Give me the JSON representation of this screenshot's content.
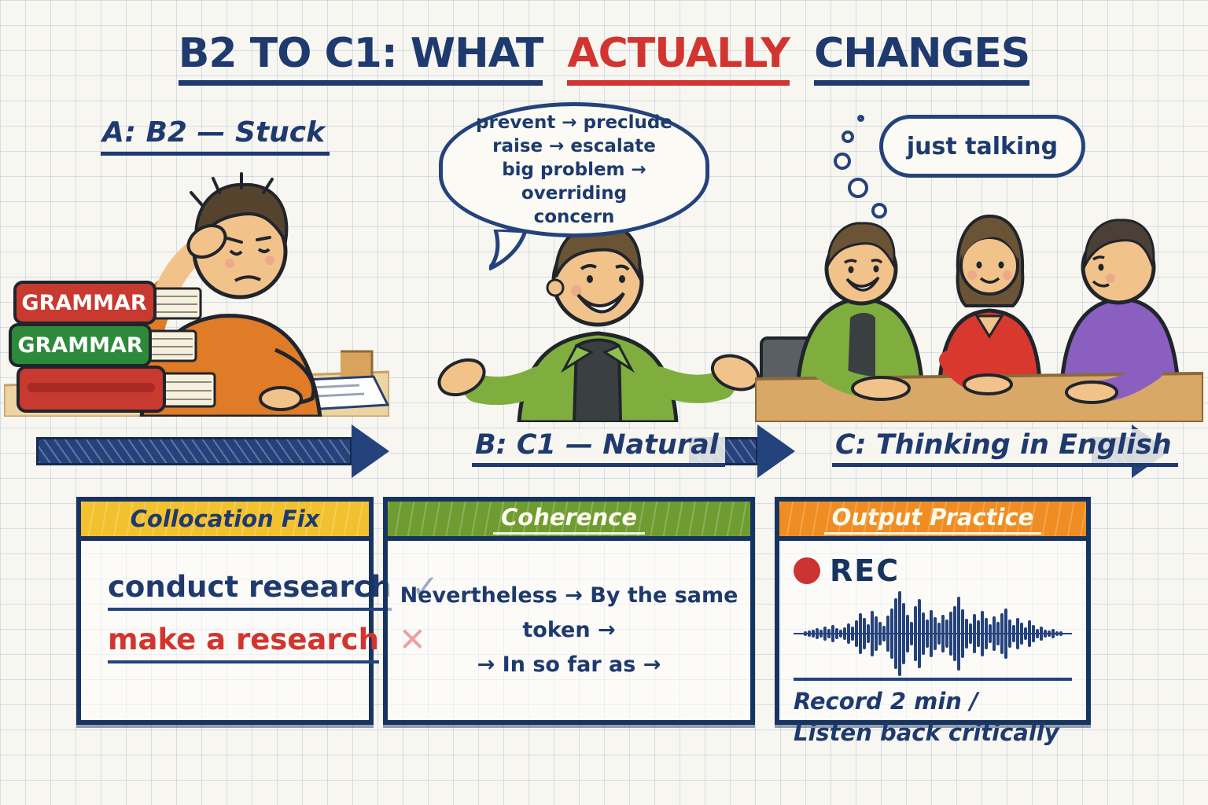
{
  "title": {
    "part1": "B2 TO C1: WHAT",
    "highlight": "ACTUALLY",
    "part2": "CHANGES"
  },
  "scene_a": {
    "label": "A: B2 — Stuck",
    "book1": "GRAMMAR",
    "book2": "GRAMMAR"
  },
  "scene_b": {
    "bubble_line1": "prevent → preclude",
    "bubble_line2": "raise → escalate",
    "bubble_line3": "big problem → overriding",
    "bubble_line4": "concern"
  },
  "scene_c": {
    "thought": "just talking"
  },
  "timeline": {
    "label_b": "B: C1 — Natural",
    "label_c": "C: Thinking in English"
  },
  "cards": {
    "collocation": {
      "title": "Collocation Fix",
      "correct_text": "conduct research",
      "correct_mark": "✓",
      "wrong_text": "make a research",
      "wrong_mark": "✕"
    },
    "coherence": {
      "title": "Coherence",
      "line1": "Nevertheless → By the same token →",
      "line2": "→ In so far as →"
    },
    "output": {
      "title": "Output Practice",
      "rec_label": "REC",
      "footer_line1": "Record 2 min /",
      "footer_line2": "Listen back critically",
      "waveform": [
        6,
        8,
        10,
        14,
        10,
        18,
        12,
        22,
        14,
        10,
        16,
        26,
        18,
        34,
        52,
        40,
        24,
        58,
        44,
        30,
        20,
        46,
        64,
        90,
        108,
        78,
        48,
        30,
        70,
        88,
        54,
        36,
        60,
        42,
        28,
        48,
        36,
        56,
        70,
        94,
        62,
        38,
        26,
        50,
        34,
        58,
        40,
        24,
        44,
        30,
        52,
        64,
        36,
        22,
        40,
        28,
        16,
        34,
        22,
        12,
        18,
        10,
        8,
        12,
        6,
        6
      ]
    }
  },
  "colors": {
    "navy": "#1e3a6e",
    "red": "#d2342f",
    "yellow": "#f2c12e",
    "green": "#6f9c30",
    "orange": "#ef8d22"
  }
}
